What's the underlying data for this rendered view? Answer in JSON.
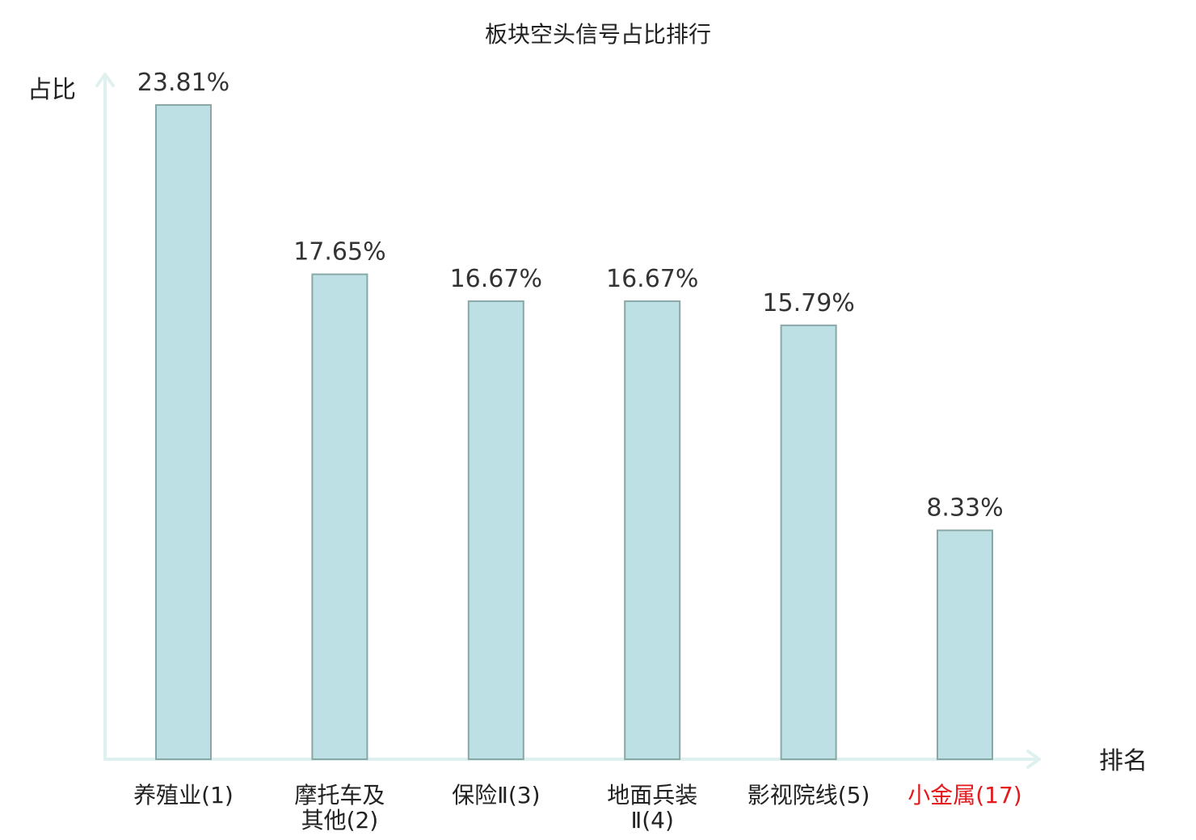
{
  "chart_data": {
    "type": "bar",
    "title": "板块空头信号占比排行",
    "ylabel": "占比",
    "xlabel": "排名",
    "ylim": [
      0,
      25
    ],
    "categories": [
      {
        "lines": [
          "养殖业(1)"
        ],
        "highlight": false
      },
      {
        "lines": [
          "摩托车及",
          "其他(2)"
        ],
        "highlight": false
      },
      {
        "lines": [
          "保险Ⅱ(3)"
        ],
        "highlight": false
      },
      {
        "lines": [
          "地面兵装",
          "Ⅱ(4)"
        ],
        "highlight": false
      },
      {
        "lines": [
          "影视院线(5)"
        ],
        "highlight": false
      },
      {
        "lines": [
          "小金属(17)"
        ],
        "highlight": true
      }
    ],
    "values": [
      23.81,
      17.65,
      16.67,
      16.67,
      15.79,
      8.33
    ],
    "value_labels": [
      "23.81%",
      "17.65%",
      "16.67%",
      "16.67%",
      "15.79%",
      "8.33%"
    ],
    "grid": false,
    "colors": {
      "bar_fill": "#bce0e3",
      "bar_stroke": "#8aa7a8",
      "axis": "#dff1ee",
      "highlight_text": "#e3191c",
      "text": "#222222"
    }
  }
}
